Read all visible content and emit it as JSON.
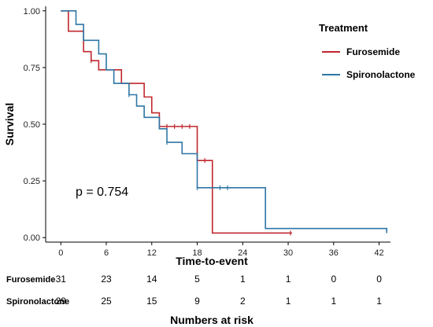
{
  "chart_data": {
    "type": "line",
    "subtype": "kaplan-meier step",
    "xlabel": "Time-to-event",
    "ylabel": "Survival",
    "xticks": [
      0,
      6,
      12,
      18,
      24,
      30,
      36,
      42
    ],
    "yticks": [
      "0.00",
      "0.25",
      "0.50",
      "0.75",
      "1.00"
    ],
    "xlim": [
      -2,
      43.5
    ],
    "ylim": [
      -0.02,
      1.02
    ],
    "grid": false,
    "legend": {
      "title": "Treatment",
      "placement": "top-right",
      "entries": [
        {
          "name": "Furosemide",
          "color": "#c0272d"
        },
        {
          "name": "Spironolactone",
          "color": "#2f76a6"
        }
      ]
    },
    "annotation": "p = 0.754",
    "series": [
      {
        "name": "Furosemide",
        "color": "#c0272d",
        "steps": [
          [
            0,
            1.0
          ],
          [
            1,
            0.91
          ],
          [
            3,
            0.82
          ],
          [
            4,
            0.78
          ],
          [
            5,
            0.74
          ],
          [
            8,
            0.68
          ],
          [
            11,
            0.62
          ],
          [
            12,
            0.55
          ],
          [
            13,
            0.49
          ],
          [
            18,
            0.34
          ],
          [
            20,
            0.02
          ],
          [
            30.5,
            0.02
          ]
        ],
        "censored": [
          [
            4,
            0.78
          ],
          [
            14,
            0.49
          ],
          [
            15,
            0.49
          ],
          [
            16,
            0.49
          ],
          [
            17,
            0.49
          ],
          [
            19,
            0.34
          ],
          [
            30.3,
            0.02
          ]
        ]
      },
      {
        "name": "Spironolactone",
        "color": "#2f76a6",
        "steps": [
          [
            0,
            1.0
          ],
          [
            2,
            0.94
          ],
          [
            3,
            0.87
          ],
          [
            5,
            0.81
          ],
          [
            6,
            0.74
          ],
          [
            7,
            0.68
          ],
          [
            9,
            0.63
          ],
          [
            10,
            0.58
          ],
          [
            11,
            0.53
          ],
          [
            13,
            0.48
          ],
          [
            14,
            0.42
          ],
          [
            16,
            0.37
          ],
          [
            18,
            0.22
          ],
          [
            27,
            0.04
          ],
          [
            43,
            0.02
          ]
        ],
        "censored": [
          [
            9,
            0.63
          ],
          [
            14,
            0.42
          ],
          [
            18,
            0.22
          ],
          [
            21,
            0.22
          ],
          [
            22,
            0.22
          ]
        ]
      }
    ]
  },
  "risk_table": {
    "title": "Numbers at risk",
    "rows": [
      {
        "label": "Furosemide",
        "counts": [
          "31",
          "23",
          "14",
          "5",
          "1",
          "1",
          "0",
          "0"
        ]
      },
      {
        "label": "Spironolactone",
        "counts": [
          "29",
          "25",
          "15",
          "9",
          "2",
          "1",
          "1",
          "1"
        ]
      }
    ]
  }
}
